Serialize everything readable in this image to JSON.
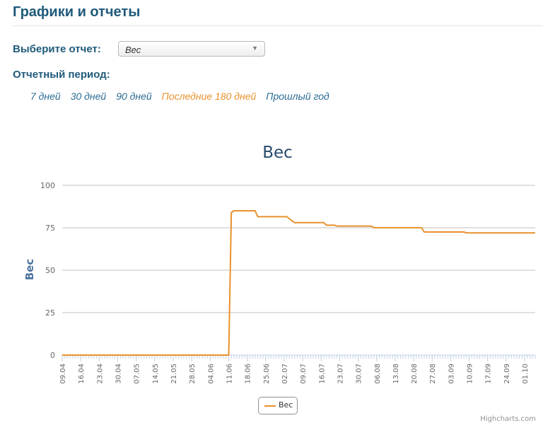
{
  "page": {
    "title": "Графики и отчеты",
    "report_label": "Выберите отчет:",
    "report_selected": "Вес",
    "period_label": "Отчетный период:",
    "periods": [
      {
        "label": "7 дней",
        "active": false
      },
      {
        "label": "30 дней",
        "active": false
      },
      {
        "label": "90 дней",
        "active": false
      },
      {
        "label": "Последние 180 дней",
        "active": true
      },
      {
        "label": "Прошлый год",
        "active": false
      }
    ]
  },
  "colors": {
    "series": "#e8912d",
    "title": "#274b6d",
    "heading": "#1f5a7a",
    "link": "#2a6b93",
    "grid": "#c0c0c0"
  },
  "chart_data": {
    "type": "line",
    "title": "Вес",
    "ylabel": "Вес",
    "ylim": [
      0,
      100
    ],
    "yticks": [
      0,
      25,
      50,
      75,
      100
    ],
    "x_start": "09.04",
    "x_end": "05.10",
    "xtick_labels": [
      "09.04",
      "16.04",
      "23.04",
      "30.04",
      "07.05",
      "14.05",
      "21.05",
      "28.05",
      "04.06",
      "11.06",
      "18.06",
      "25.06",
      "02.07",
      "09.07",
      "16.07",
      "23.07",
      "30.07",
      "06.08",
      "13.08",
      "20.08",
      "27.08",
      "03.09",
      "10.09",
      "17.09",
      "24.09",
      "01.10"
    ],
    "legend": "bottom-center",
    "grid": true,
    "credits": "Highcharts.com",
    "series": [
      {
        "name": "Вес",
        "points": [
          [
            "09.04",
            0
          ],
          [
            "11.06",
            0
          ],
          [
            "12.06",
            84
          ],
          [
            "13.06",
            85
          ],
          [
            "21.06",
            85
          ],
          [
            "22.06",
            81.5
          ],
          [
            "03.07",
            81.5
          ],
          [
            "05.07",
            79
          ],
          [
            "06.07",
            78
          ],
          [
            "17.07",
            78
          ],
          [
            "18.07",
            76.5
          ],
          [
            "21.07",
            76.5
          ],
          [
            "22.07",
            76
          ],
          [
            "04.08",
            76
          ],
          [
            "05.08",
            75
          ],
          [
            "23.08",
            75
          ],
          [
            "24.08",
            72.5
          ],
          [
            "08.09",
            72.5
          ],
          [
            "09.09",
            72
          ],
          [
            "05.10",
            72
          ]
        ]
      }
    ]
  }
}
